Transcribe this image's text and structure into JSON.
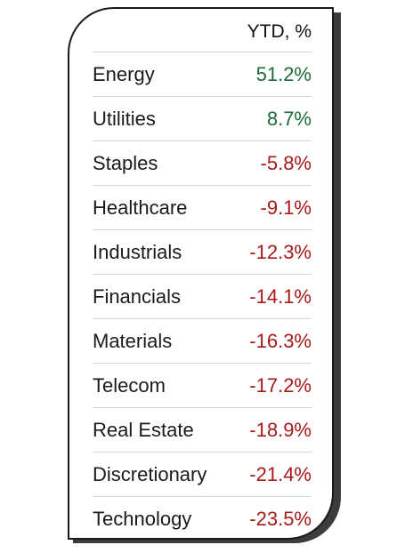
{
  "table": {
    "header": "YTD, %",
    "rows": [
      {
        "sector": "Energy",
        "ytd": "51.2%",
        "direction": "positive"
      },
      {
        "sector": "Utilities",
        "ytd": "8.7%",
        "direction": "positive"
      },
      {
        "sector": "Staples",
        "ytd": "-5.8%",
        "direction": "negative"
      },
      {
        "sector": "Healthcare",
        "ytd": "-9.1%",
        "direction": "negative"
      },
      {
        "sector": "Industrials",
        "ytd": "-12.3%",
        "direction": "negative"
      },
      {
        "sector": "Financials",
        "ytd": "-14.1%",
        "direction": "negative"
      },
      {
        "sector": "Materials",
        "ytd": "-16.3%",
        "direction": "negative"
      },
      {
        "sector": "Telecom",
        "ytd": "-17.2%",
        "direction": "negative"
      },
      {
        "sector": "Real Estate",
        "ytd": "-18.9%",
        "direction": "negative"
      },
      {
        "sector": "Discretionary",
        "ytd": "-21.4%",
        "direction": "negative"
      },
      {
        "sector": "Technology",
        "ytd": "-23.5%",
        "direction": "negative"
      }
    ]
  },
  "colors": {
    "positive": "#1e6b3a",
    "negative": "#a81919",
    "text": "#1a1a1a",
    "divider": "#d4d4d4",
    "border": "#1a1a1a",
    "shadow": "#3c3c3c"
  }
}
